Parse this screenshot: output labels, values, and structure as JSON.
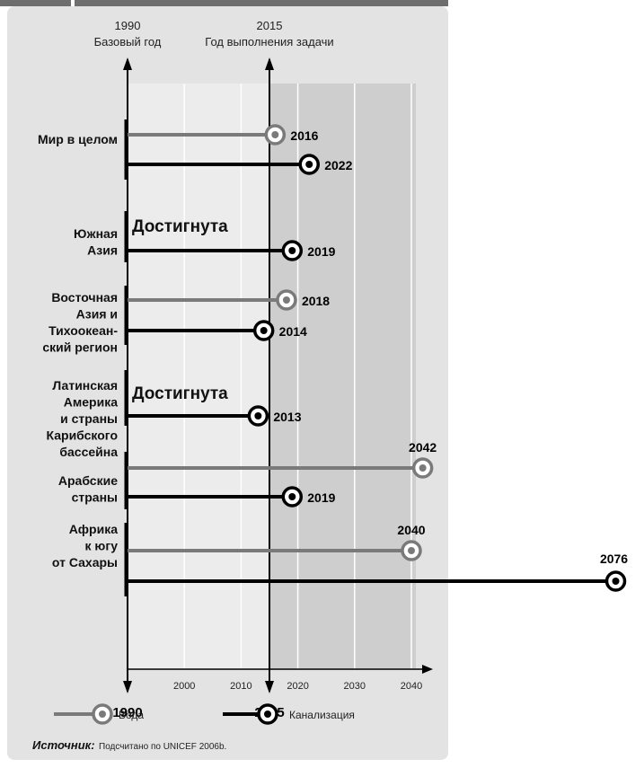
{
  "chart_data": {
    "type": "timeline",
    "header": {
      "baseline_year": "1990",
      "baseline_label": "Базовый год",
      "target_year": "2015",
      "target_label": "Год выполнения задачи"
    },
    "x_ticks": [
      2000,
      2010,
      2020,
      2030,
      2040
    ],
    "axis_bottom_labels": [
      "1990",
      "2015"
    ],
    "xlim": [
      1990,
      2040
    ],
    "series": [
      {
        "key": "water",
        "name": "Вода",
        "color": "#7a7a7a"
      },
      {
        "key": "sanitation",
        "name": "Канализация",
        "color": "#000000"
      }
    ],
    "regions": [
      {
        "label": [
          "Мир в целом"
        ],
        "water": 2016,
        "sanitation": 2022,
        "note": ""
      },
      {
        "label": [
          "Южная",
          "Азия"
        ],
        "water": null,
        "sanitation": 2019,
        "note": "Достигнута"
      },
      {
        "label": [
          "Восточная",
          "Азия  и",
          "Тихоокеан-",
          "ский регион"
        ],
        "water": 2018,
        "sanitation": 2014,
        "note": ""
      },
      {
        "label": [
          "Латинская",
          "Америка",
          "и страны",
          "Карибского",
          "бассейна"
        ],
        "water": null,
        "sanitation": 2013,
        "note": "Достигнута"
      },
      {
        "label": [
          "Арабские",
          "страны"
        ],
        "water": 2042,
        "sanitation": 2019,
        "note": ""
      },
      {
        "label": [
          "Африка",
          "к югу",
          "от Сахары"
        ],
        "water": 2040,
        "sanitation": 2076,
        "note": ""
      }
    ],
    "source_label": "Источник:",
    "source_text": "Подсчитано по UNICEF 2006b.",
    "colors": {
      "panel": "#e3e3e3",
      "plot_light": "#ececec",
      "plot_dark": "#cecece",
      "header_bar": "#6e6e6e",
      "water": "#7a7a7a",
      "sanitation": "#000000"
    }
  }
}
